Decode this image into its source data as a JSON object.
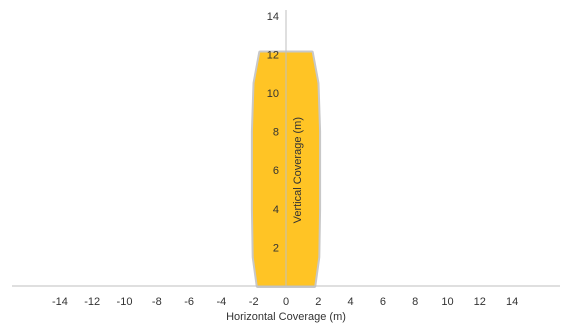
{
  "chart_data": {
    "type": "area",
    "xlabel": "Horizontal Coverage (m)",
    "ylabel": "Vertical Coverage (m)",
    "xlim": [
      -15.5,
      15.5
    ],
    "ylim": [
      0,
      14
    ],
    "x_ticks": [
      -14,
      -12,
      -10,
      -8,
      -6,
      -4,
      -2,
      0,
      2,
      4,
      6,
      8,
      10,
      12,
      14
    ],
    "y_ticks": [
      2,
      4,
      6,
      8,
      10,
      12,
      14
    ],
    "grid": false,
    "series": [
      {
        "fill_color": "#FFC425",
        "outline_color": "#C8C8C8",
        "points": [
          {
            "x": -1.6,
            "y": 12.1
          },
          {
            "x": -1.95,
            "y": 10.5
          },
          {
            "x": -2.05,
            "y": 8.0
          },
          {
            "x": -2.05,
            "y": 4.0
          },
          {
            "x": -2.0,
            "y": 1.5
          },
          {
            "x": -1.75,
            "y": 0.0
          },
          {
            "x": 1.75,
            "y": 0.0
          },
          {
            "x": 2.0,
            "y": 1.5
          },
          {
            "x": 2.05,
            "y": 4.0
          },
          {
            "x": 2.05,
            "y": 8.0
          },
          {
            "x": 1.95,
            "y": 10.5
          },
          {
            "x": 1.6,
            "y": 12.1
          }
        ]
      }
    ]
  }
}
